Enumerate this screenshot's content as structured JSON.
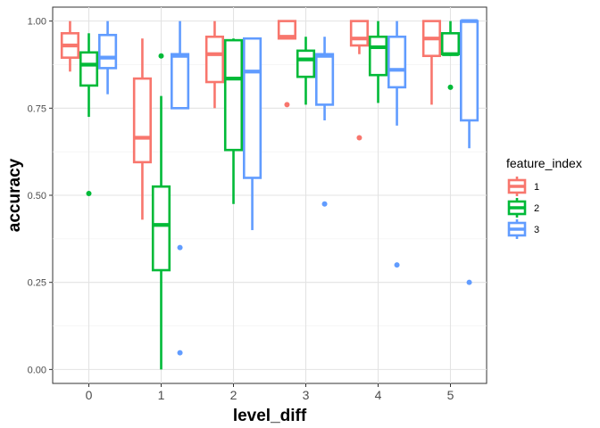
{
  "chart_data": {
    "type": "boxplot",
    "xlabel": "level_diff",
    "ylabel": "accuracy",
    "categories": [
      "0",
      "1",
      "2",
      "3",
      "4",
      "5"
    ],
    "ylim": [
      -0.04,
      1.04
    ],
    "yticks": [
      0.0,
      0.25,
      0.5,
      0.75,
      1.0
    ],
    "ytick_labels": [
      "0.00",
      "0.25",
      "0.50",
      "0.75",
      "1.00"
    ],
    "grid": true,
    "legend": {
      "title": "feature_index",
      "position": "right"
    },
    "series": [
      {
        "name": "1",
        "color": "#F8766D",
        "boxes": [
          {
            "category": "0",
            "min": 0.855,
            "q1": 0.895,
            "median": 0.93,
            "q3": 0.965,
            "max": 1.0,
            "outliers": []
          },
          {
            "category": "1",
            "min": 0.43,
            "q1": 0.595,
            "median": 0.665,
            "q3": 0.835,
            "max": 0.95,
            "outliers": []
          },
          {
            "category": "2",
            "min": 0.75,
            "q1": 0.825,
            "median": 0.905,
            "q3": 0.955,
            "max": 1.0,
            "outliers": []
          },
          {
            "category": "3",
            "min": 0.95,
            "q1": 0.95,
            "median": 0.955,
            "q3": 1.0,
            "max": 1.0,
            "outliers": [
              0.76
            ]
          },
          {
            "category": "4",
            "min": 0.905,
            "q1": 0.93,
            "median": 0.95,
            "q3": 1.0,
            "max": 1.0,
            "outliers": [
              0.665
            ]
          },
          {
            "category": "5",
            "min": 0.76,
            "q1": 0.9,
            "median": 0.95,
            "q3": 1.0,
            "max": 1.0,
            "outliers": []
          }
        ]
      },
      {
        "name": "2",
        "color": "#00BA38",
        "boxes": [
          {
            "category": "0",
            "min": 0.725,
            "q1": 0.815,
            "median": 0.875,
            "q3": 0.91,
            "max": 0.965,
            "outliers": [
              0.505
            ]
          },
          {
            "category": "1",
            "min": 0.0,
            "q1": 0.285,
            "median": 0.415,
            "q3": 0.525,
            "max": 0.785,
            "outliers": [
              0.9
            ]
          },
          {
            "category": "2",
            "min": 0.475,
            "q1": 0.63,
            "median": 0.835,
            "q3": 0.945,
            "max": 0.95,
            "outliers": []
          },
          {
            "category": "3",
            "min": 0.76,
            "q1": 0.84,
            "median": 0.89,
            "q3": 0.915,
            "max": 0.955,
            "outliers": []
          },
          {
            "category": "4",
            "min": 0.765,
            "q1": 0.845,
            "median": 0.925,
            "q3": 0.955,
            "max": 1.0,
            "outliers": []
          },
          {
            "category": "5",
            "min": 0.9,
            "q1": 0.905,
            "median": 0.905,
            "q3": 0.965,
            "max": 1.0,
            "outliers": [
              0.81
            ]
          }
        ]
      },
      {
        "name": "3",
        "color": "#619CFF",
        "boxes": [
          {
            "category": "0",
            "min": 0.79,
            "q1": 0.865,
            "median": 0.895,
            "q3": 0.96,
            "max": 1.0,
            "outliers": []
          },
          {
            "category": "1",
            "min": 0.75,
            "q1": 0.75,
            "median": 0.9,
            "q3": 0.905,
            "max": 1.0,
            "outliers": [
              0.35,
              0.048
            ]
          },
          {
            "category": "2",
            "min": 0.4,
            "q1": 0.55,
            "median": 0.855,
            "q3": 0.95,
            "max": 0.95,
            "outliers": []
          },
          {
            "category": "3",
            "min": 0.715,
            "q1": 0.76,
            "median": 0.9,
            "q3": 0.905,
            "max": 0.955,
            "outliers": [
              0.475
            ]
          },
          {
            "category": "4",
            "min": 0.7,
            "q1": 0.81,
            "median": 0.86,
            "q3": 0.955,
            "max": 1.0,
            "outliers": [
              0.3
            ]
          },
          {
            "category": "5",
            "min": 0.635,
            "q1": 0.715,
            "median": 1.0,
            "q3": 1.0,
            "max": 1.0,
            "outliers": [
              0.25
            ]
          }
        ]
      }
    ]
  }
}
